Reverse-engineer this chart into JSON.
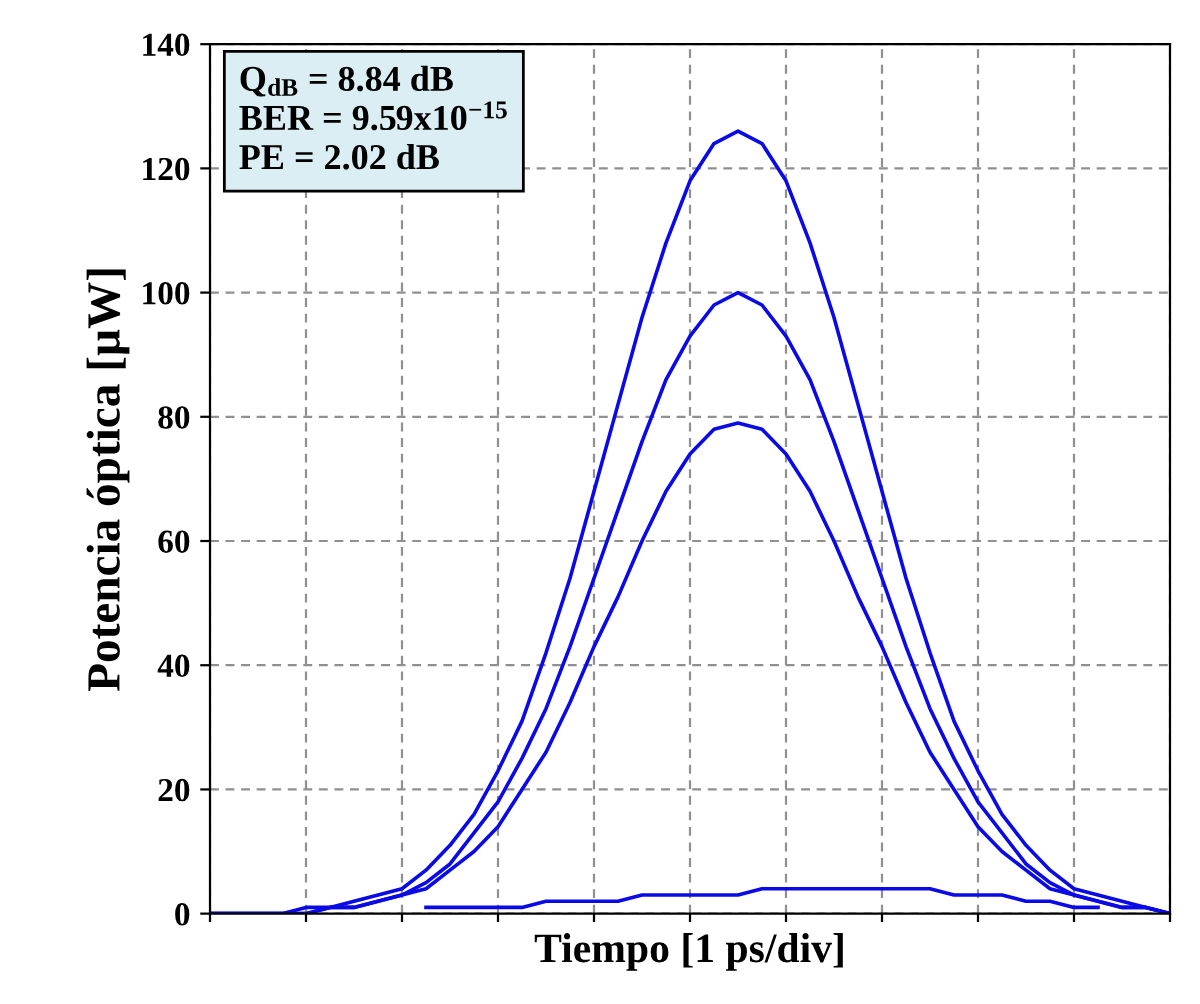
{
  "chart_data": {
    "type": "line",
    "xlabel": "Tiempo [1 ps/div]",
    "ylabel": "Potencia óptica [µW]",
    "annotations": [
      "Q$_{dB}$ = 8.84 dB",
      "BER = 9.59x10$^{−15}$",
      "PE = 2.02 dB"
    ],
    "categories": [
      null,
      null,
      null,
      null,
      null,
      null,
      null,
      null,
      null,
      null,
      null,
      null,
      null,
      null,
      null,
      null,
      null,
      null,
      null,
      null,
      null,
      null,
      null,
      null,
      null,
      null,
      null,
      null,
      null,
      null,
      null,
      null,
      null,
      null,
      null,
      null,
      null,
      null,
      null,
      null,
      null
    ],
    "series": [
      {
        "color": "#0a0ae6",
        "values": [
          0,
          0,
          0,
          0,
          1,
          1,
          2,
          3,
          4,
          7,
          11,
          16,
          23,
          31,
          42,
          54,
          68,
          82,
          96,
          108,
          118,
          124,
          126,
          124,
          118,
          108,
          96,
          82,
          68,
          54,
          42,
          31,
          23,
          16,
          11,
          7,
          4,
          3,
          2,
          1,
          0
        ]
      },
      {
        "color": "#0a0ae6",
        "values": [
          0,
          0,
          0,
          0,
          0,
          1,
          1,
          2,
          3,
          5,
          8,
          13,
          18,
          25,
          33,
          43,
          54,
          65,
          76,
          86,
          93,
          98,
          100,
          98,
          93,
          86,
          76,
          65,
          54,
          43,
          33,
          25,
          18,
          13,
          8,
          5,
          3,
          2,
          1,
          1,
          0
        ]
      },
      {
        "color": "#0a0ae6",
        "values": [
          0,
          0,
          0,
          0,
          0,
          1,
          1,
          2,
          3,
          4,
          7,
          10,
          14,
          20,
          26,
          34,
          43,
          51,
          60,
          68,
          74,
          78,
          79,
          78,
          74,
          68,
          60,
          51,
          43,
          34,
          26,
          20,
          14,
          10,
          7,
          4,
          3,
          2,
          1,
          1,
          0
        ]
      },
      {
        "color": "#0a0ae6",
        "values": [
          null,
          null,
          null,
          null,
          null,
          null,
          null,
          null,
          null,
          1,
          1,
          1,
          1,
          1,
          2,
          2,
          2,
          2,
          3,
          3,
          3,
          3,
          3,
          4,
          4,
          4,
          4,
          4,
          4,
          4,
          4,
          3,
          3,
          3,
          2,
          2,
          1,
          1,
          null,
          null,
          null
        ]
      }
    ],
    "ylim": [
      0,
      140
    ],
    "yticks": [
      0,
      20,
      40,
      60,
      80,
      100,
      120,
      140
    ],
    "grid": true,
    "tick_labels": "y",
    "line_style": "solid",
    "marker": "none"
  }
}
